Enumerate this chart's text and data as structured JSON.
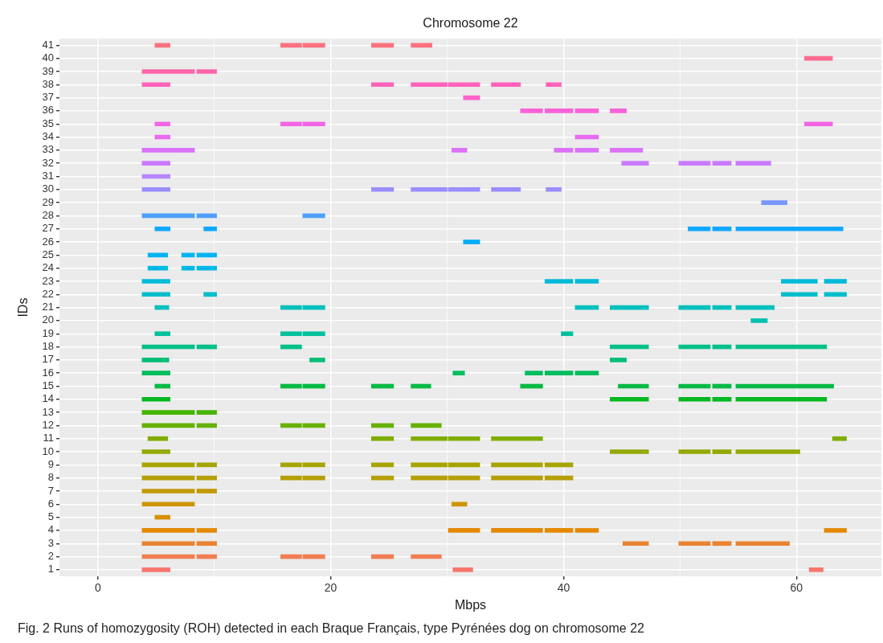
{
  "chart_data": {
    "type": "bar",
    "orientation": "horizontal",
    "title": "Chromosome 22",
    "xlabel": "Mbps",
    "ylabel": "IDs",
    "categories": [
      "41",
      "40",
      "39",
      "38",
      "37",
      "36",
      "35",
      "34",
      "33",
      "32",
      "31",
      "30",
      "29",
      "28",
      "27",
      "26",
      "25",
      "24",
      "23",
      "22",
      "21",
      "20",
      "19",
      "18",
      "17",
      "16",
      "15",
      "14",
      "13",
      "12",
      "11",
      "10",
      "9",
      "8",
      "7",
      "6",
      "5",
      "4",
      "3",
      "2",
      "1"
    ],
    "series": [
      {
        "base": [
          4.9,
          60.7,
          3.8,
          3.8,
          31.4,
          36.3,
          4.9,
          4.9,
          3.8,
          3.8,
          3.8,
          3.8,
          57.0,
          3.8,
          4.9,
          31.4,
          4.3,
          4.3,
          3.8,
          3.8,
          4.9,
          56.1,
          4.9,
          3.8,
          3.8,
          3.8,
          4.9,
          3.8,
          3.8,
          3.8,
          4.3,
          3.8,
          3.8,
          3.8,
          3.8,
          3.8,
          4.9,
          3.8,
          3.8,
          3.8,
          3.8
        ],
        "values": [
          1.3,
          2.4,
          4.5,
          2.4,
          1.4,
          1.9,
          1.3,
          1.3,
          4.5,
          2.4,
          2.4,
          2.4,
          2.2,
          4.5,
          1.3,
          1.4,
          1.7,
          1.7,
          2.4,
          2.4,
          1.2,
          1.4,
          1.3,
          4.5,
          2.3,
          2.4,
          1.3,
          2.4,
          4.5,
          4.5,
          1.7,
          2.4,
          4.5,
          4.5,
          4.5,
          4.5,
          1.3,
          4.5,
          4.5,
          4.5,
          2.4
        ],
        "colors": [
          "#fc717f",
          "#ff6c90",
          "#ff65aa",
          "#ff62ba",
          "#fe61ca",
          "#fa62d9",
          "#f365e5",
          "#e86af2",
          "#dc71fa",
          "#ca7afe",
          "#b685ff",
          "#9a8eff",
          "#7a96ff",
          "#4f9fff",
          "#0fa7ff",
          "#00adfa",
          "#00b3f1",
          "#00b8e5",
          "#00bbd8",
          "#00becb",
          "#00c0bc",
          "#00c1ae",
          "#00c19c",
          "#00c089",
          "#00bf75",
          "#00bd5e",
          "#00ba43",
          "#00b820",
          "#46b500",
          "#66b100",
          "#80ad00",
          "#94a900",
          "#a6a400",
          "#b59f00",
          "#c29a00",
          "#ce9500",
          "#d89000",
          "#e38900",
          "#ea8331",
          "#f17d51",
          "#f8766d"
        ]
      },
      {
        "base": [
          15.7,
          null,
          8.5,
          23.5,
          null,
          38.4,
          15.7,
          41.0,
          30.4,
          45.0,
          null,
          23.5,
          null,
          8.5,
          9.1,
          null,
          7.2,
          7.2,
          38.4,
          9.1,
          15.7,
          null,
          15.7,
          8.5,
          18.2,
          30.5,
          15.7,
          44.0,
          8.5,
          8.5,
          23.5,
          44.0,
          8.5,
          8.5,
          8.5,
          30.4,
          null,
          8.5,
          8.5,
          8.5,
          30.5
        ],
        "values": [
          1.8,
          null,
          1.7,
          1.9,
          null,
          2.4,
          1.8,
          2.0,
          1.3,
          2.3,
          null,
          1.9,
          null,
          1.7,
          1.1,
          null,
          1.1,
          1.1,
          2.4,
          1.1,
          1.8,
          null,
          1.8,
          1.7,
          1.3,
          1.0,
          1.8,
          3.3,
          1.7,
          1.7,
          1.9,
          3.3,
          1.7,
          1.7,
          1.7,
          1.3,
          null,
          1.7,
          1.7,
          1.7,
          1.7
        ],
        "colors": [
          "#fc717f",
          "#ff6c90",
          "#ff65aa",
          "#ff62ba",
          "#fe61ca",
          "#fa62d9",
          "#f365e5",
          "#e86af2",
          "#dc71fa",
          "#ca7afe",
          "#b685ff",
          "#9a8eff",
          "#7a96ff",
          "#4f9fff",
          "#0fa7ff",
          "#00adfa",
          "#00b3f1",
          "#00b8e5",
          "#00bbd8",
          "#00becb",
          "#00c0bc",
          "#00c1ae",
          "#00c19c",
          "#00c089",
          "#00bf75",
          "#00bd5e",
          "#00ba43",
          "#00b820",
          "#46b500",
          "#66b100",
          "#80ad00",
          "#94a900",
          "#a6a400",
          "#b59f00",
          "#c29a00",
          "#ce9500",
          "#d89000",
          "#e38900",
          "#ea8331",
          "#f17d51",
          "#f8766d"
        ]
      },
      {
        "base": [
          17.6,
          null,
          null,
          26.9,
          null,
          41.0,
          17.6,
          null,
          39.2,
          49.9,
          null,
          26.9,
          null,
          17.6,
          50.7,
          null,
          8.5,
          8.5,
          41.0,
          58.7,
          17.6,
          null,
          17.6,
          15.7,
          44.0,
          36.7,
          17.6,
          49.9,
          null,
          15.7,
          26.9,
          49.9,
          15.7,
          15.7,
          null,
          null,
          null,
          30.1,
          45.1,
          15.7,
          61.1
        ],
        "values": [
          1.9,
          null,
          null,
          3.1,
          null,
          2.0,
          1.9,
          null,
          1.6,
          2.7,
          null,
          3.1,
          null,
          1.9,
          1.9,
          null,
          1.7,
          1.7,
          2.0,
          3.1,
          1.9,
          null,
          1.9,
          1.8,
          1.4,
          1.5,
          1.9,
          2.7,
          null,
          1.8,
          3.1,
          2.7,
          1.8,
          1.8,
          null,
          null,
          null,
          2.7,
          2.2,
          1.8,
          1.2
        ],
        "colors": [
          "#fc717f",
          "#ff6c90",
          "#ff65aa",
          "#ff62ba",
          "#fe61ca",
          "#fa62d9",
          "#f365e5",
          "#e86af2",
          "#dc71fa",
          "#ca7afe",
          "#b685ff",
          "#9a8eff",
          "#7a96ff",
          "#4f9fff",
          "#0fa7ff",
          "#00adfa",
          "#00b3f1",
          "#00b8e5",
          "#00bbd8",
          "#00becb",
          "#00c0bc",
          "#00c1ae",
          "#00c19c",
          "#00c089",
          "#00bf75",
          "#00bd5e",
          "#00ba43",
          "#00b820",
          "#46b500",
          "#66b100",
          "#80ad00",
          "#94a900",
          "#a6a400",
          "#b59f00",
          "#c29a00",
          "#ce9500",
          "#d89000",
          "#e38900",
          "#ea8331",
          "#f17d51",
          "#f8766d"
        ]
      },
      {
        "base": [
          23.5,
          null,
          null,
          30.1,
          null,
          44.0,
          60.7,
          null,
          41.0,
          52.8,
          null,
          30.1,
          null,
          null,
          52.8,
          null,
          null,
          null,
          58.7,
          62.4,
          41.0,
          null,
          39.8,
          44.0,
          null,
          38.4,
          23.5,
          52.8,
          null,
          17.6,
          30.1,
          52.8,
          17.6,
          17.6,
          null,
          null,
          null,
          33.8,
          49.9,
          17.6,
          null
        ],
        "values": [
          1.9,
          null,
          null,
          2.7,
          null,
          1.4,
          2.4,
          null,
          2.0,
          1.6,
          null,
          2.7,
          null,
          null,
          1.6,
          null,
          null,
          null,
          3.1,
          1.9,
          2.0,
          null,
          1.0,
          3.3,
          null,
          2.4,
          1.9,
          1.6,
          null,
          1.9,
          2.7,
          1.6,
          1.9,
          1.9,
          null,
          null,
          null,
          4.4,
          2.7,
          1.9,
          null
        ],
        "colors": [
          "#fc717f",
          "#ff6c90",
          "#ff65aa",
          "#ff62ba",
          "#fe61ca",
          "#fa62d9",
          "#f365e5",
          "#e86af2",
          "#dc71fa",
          "#ca7afe",
          "#b685ff",
          "#9a8eff",
          "#7a96ff",
          "#4f9fff",
          "#0fa7ff",
          "#00adfa",
          "#00b3f1",
          "#00b8e5",
          "#00bbd8",
          "#00becb",
          "#00c0bc",
          "#00c1ae",
          "#00c19c",
          "#00c089",
          "#00bf75",
          "#00bd5e",
          "#00ba43",
          "#00b820",
          "#46b500",
          "#66b100",
          "#80ad00",
          "#94a900",
          "#a6a400",
          "#b59f00",
          "#c29a00",
          "#ce9500",
          "#d89000",
          "#e38900",
          "#ea8331",
          "#f17d51",
          "#f8766d"
        ]
      },
      {
        "base": [
          26.9,
          null,
          null,
          33.8,
          null,
          null,
          null,
          null,
          44.0,
          54.8,
          null,
          33.8,
          null,
          null,
          54.8,
          null,
          null,
          null,
          62.4,
          null,
          44.0,
          null,
          null,
          49.9,
          null,
          41.0,
          26.9,
          54.8,
          null,
          23.5,
          33.8,
          54.8,
          23.5,
          23.5,
          null,
          null,
          null,
          38.4,
          52.8,
          23.5,
          null
        ],
        "values": [
          1.8,
          null,
          null,
          2.5,
          null,
          null,
          null,
          null,
          2.8,
          3.0,
          null,
          2.5,
          null,
          null,
          9.2,
          null,
          null,
          null,
          1.9,
          null,
          3.3,
          null,
          null,
          2.7,
          null,
          2.0,
          1.7,
          7.8,
          null,
          1.9,
          4.4,
          5.5,
          1.9,
          1.9,
          null,
          null,
          null,
          2.4,
          1.6,
          1.9,
          null
        ],
        "colors": [
          "#fc717f",
          "#ff6c90",
          "#ff65aa",
          "#ff62ba",
          "#fe61ca",
          "#fa62d9",
          "#f365e5",
          "#e86af2",
          "#dc71fa",
          "#ca7afe",
          "#b685ff",
          "#9a8eff",
          "#7a96ff",
          "#4f9fff",
          "#0fa7ff",
          "#00adfa",
          "#00b3f1",
          "#00b8e5",
          "#00bbd8",
          "#00becb",
          "#00c0bc",
          "#00c1ae",
          "#00c19c",
          "#00c089",
          "#00bf75",
          "#00bd5e",
          "#00ba43",
          "#00b820",
          "#46b500",
          "#66b100",
          "#80ad00",
          "#94a900",
          "#a6a400",
          "#b59f00",
          "#c29a00",
          "#ce9500",
          "#d89000",
          "#e38900",
          "#ea8331",
          "#f17d51",
          "#f8766d"
        ]
      },
      {
        "base": [
          null,
          null,
          null,
          38.5,
          null,
          null,
          null,
          null,
          null,
          null,
          null,
          38.5,
          null,
          null,
          null,
          null,
          null,
          null,
          null,
          null,
          49.9,
          null,
          null,
          52.8,
          null,
          null,
          36.3,
          null,
          null,
          26.9,
          63.1,
          null,
          26.9,
          26.9,
          null,
          null,
          null,
          41.0,
          54.8,
          26.9,
          null
        ],
        "values": [
          null,
          null,
          null,
          1.3,
          null,
          null,
          null,
          null,
          null,
          null,
          null,
          1.3,
          null,
          null,
          null,
          null,
          null,
          null,
          null,
          null,
          2.7,
          null,
          null,
          1.6,
          null,
          null,
          1.9,
          null,
          null,
          2.6,
          1.2,
          null,
          3.1,
          3.1,
          null,
          null,
          null,
          2.0,
          4.6,
          2.6,
          null
        ],
        "colors": [
          "#fc717f",
          "#ff6c90",
          "#ff65aa",
          "#ff62ba",
          "#fe61ca",
          "#fa62d9",
          "#f365e5",
          "#e86af2",
          "#dc71fa",
          "#ca7afe",
          "#b685ff",
          "#9a8eff",
          "#7a96ff",
          "#4f9fff",
          "#0fa7ff",
          "#00adfa",
          "#00b3f1",
          "#00b8e5",
          "#00bbd8",
          "#00becb",
          "#00c0bc",
          "#00c1ae",
          "#00c19c",
          "#00c089",
          "#00bf75",
          "#00bd5e",
          "#00ba43",
          "#00b820",
          "#46b500",
          "#66b100",
          "#80ad00",
          "#94a900",
          "#a6a400",
          "#b59f00",
          "#c29a00",
          "#ce9500",
          "#d89000",
          "#e38900",
          "#ea8331",
          "#f17d51",
          "#f8766d"
        ]
      },
      {
        "base": [
          null,
          null,
          null,
          null,
          null,
          null,
          null,
          null,
          null,
          null,
          null,
          null,
          null,
          null,
          null,
          null,
          null,
          null,
          null,
          null,
          52.8,
          null,
          null,
          54.8,
          null,
          null,
          44.7,
          null,
          null,
          null,
          null,
          null,
          30.1,
          30.1,
          null,
          null,
          null,
          62.4,
          null,
          null,
          null
        ],
        "values": [
          null,
          null,
          null,
          null,
          null,
          null,
          null,
          null,
          null,
          null,
          null,
          null,
          null,
          null,
          null,
          null,
          null,
          null,
          null,
          null,
          1.6,
          null,
          null,
          7.8,
          null,
          null,
          2.6,
          null,
          null,
          null,
          null,
          null,
          2.7,
          2.7,
          null,
          null,
          null,
          1.9,
          null,
          null,
          null
        ],
        "colors": [
          "#fc717f",
          "#ff6c90",
          "#ff65aa",
          "#ff62ba",
          "#fe61ca",
          "#fa62d9",
          "#f365e5",
          "#e86af2",
          "#dc71fa",
          "#ca7afe",
          "#b685ff",
          "#9a8eff",
          "#7a96ff",
          "#4f9fff",
          "#0fa7ff",
          "#00adfa",
          "#00b3f1",
          "#00b8e5",
          "#00bbd8",
          "#00becb",
          "#00c0bc",
          "#00c1ae",
          "#00c19c",
          "#00c089",
          "#00bf75",
          "#00bd5e",
          "#00ba43",
          "#00b820",
          "#46b500",
          "#66b100",
          "#80ad00",
          "#94a900",
          "#a6a400",
          "#b59f00",
          "#c29a00",
          "#ce9500",
          "#d89000",
          "#e38900",
          "#ea8331",
          "#f17d51",
          "#f8766d"
        ]
      },
      {
        "base": [
          null,
          null,
          null,
          null,
          null,
          null,
          null,
          null,
          null,
          null,
          null,
          null,
          null,
          null,
          null,
          null,
          null,
          null,
          null,
          null,
          54.8,
          null,
          null,
          null,
          null,
          null,
          49.9,
          null,
          null,
          null,
          null,
          null,
          33.8,
          33.8,
          null,
          null,
          null,
          null,
          null,
          null,
          null
        ],
        "values": [
          null,
          null,
          null,
          null,
          null,
          null,
          null,
          null,
          null,
          null,
          null,
          null,
          null,
          null,
          null,
          null,
          null,
          null,
          null,
          null,
          3.3,
          null,
          null,
          null,
          null,
          null,
          2.7,
          null,
          null,
          null,
          null,
          null,
          4.4,
          4.4,
          null,
          null,
          null,
          null,
          null,
          null,
          null
        ],
        "colors": [
          "#fc717f",
          "#ff6c90",
          "#ff65aa",
          "#ff62ba",
          "#fe61ca",
          "#fa62d9",
          "#f365e5",
          "#e86af2",
          "#dc71fa",
          "#ca7afe",
          "#b685ff",
          "#9a8eff",
          "#7a96ff",
          "#4f9fff",
          "#0fa7ff",
          "#00adfa",
          "#00b3f1",
          "#00b8e5",
          "#00bbd8",
          "#00becb",
          "#00c0bc",
          "#00c1ae",
          "#00c19c",
          "#00c089",
          "#00bf75",
          "#00bd5e",
          "#00ba43",
          "#00b820",
          "#46b500",
          "#66b100",
          "#80ad00",
          "#94a900",
          "#a6a400",
          "#b59f00",
          "#c29a00",
          "#ce9500",
          "#d89000",
          "#e38900",
          "#ea8331",
          "#f17d51",
          "#f8766d"
        ]
      },
      {
        "base": [
          null,
          null,
          null,
          null,
          null,
          null,
          null,
          null,
          null,
          null,
          null,
          null,
          null,
          null,
          null,
          null,
          null,
          null,
          null,
          null,
          null,
          null,
          null,
          null,
          null,
          null,
          52.8,
          null,
          null,
          null,
          null,
          null,
          38.4,
          38.4,
          null,
          null,
          null,
          null,
          null,
          null,
          null
        ],
        "values": [
          null,
          null,
          null,
          null,
          null,
          null,
          null,
          null,
          null,
          null,
          null,
          null,
          null,
          null,
          null,
          null,
          null,
          null,
          null,
          null,
          null,
          null,
          null,
          null,
          null,
          null,
          1.6,
          null,
          null,
          null,
          null,
          null,
          2.4,
          2.4,
          null,
          null,
          null,
          null,
          null,
          null,
          null
        ],
        "colors": [
          "#fc717f",
          "#ff6c90",
          "#ff65aa",
          "#ff62ba",
          "#fe61ca",
          "#fa62d9",
          "#f365e5",
          "#e86af2",
          "#dc71fa",
          "#ca7afe",
          "#b685ff",
          "#9a8eff",
          "#7a96ff",
          "#4f9fff",
          "#0fa7ff",
          "#00adfa",
          "#00b3f1",
          "#00b8e5",
          "#00bbd8",
          "#00becb",
          "#00c0bc",
          "#00c1ae",
          "#00c19c",
          "#00c089",
          "#00bf75",
          "#00bd5e",
          "#00ba43",
          "#00b820",
          "#46b500",
          "#66b100",
          "#80ad00",
          "#94a900",
          "#a6a400",
          "#b59f00",
          "#c29a00",
          "#ce9500",
          "#d89000",
          "#e38900",
          "#ea8331",
          "#f17d51",
          "#f8766d"
        ]
      },
      {
        "base": [
          null,
          null,
          null,
          null,
          null,
          null,
          null,
          null,
          null,
          null,
          null,
          null,
          null,
          null,
          null,
          null,
          null,
          null,
          null,
          null,
          null,
          null,
          null,
          null,
          null,
          null,
          54.8,
          null,
          null,
          null,
          null,
          null,
          null,
          null,
          null,
          null,
          null,
          null,
          null,
          null,
          null
        ],
        "values": [
          null,
          null,
          null,
          null,
          null,
          null,
          null,
          null,
          null,
          null,
          null,
          null,
          null,
          null,
          null,
          null,
          null,
          null,
          null,
          null,
          null,
          null,
          null,
          null,
          null,
          null,
          8.4,
          null,
          null,
          null,
          null,
          null,
          null,
          null,
          null,
          null,
          null,
          null,
          null,
          null,
          null
        ],
        "colors": [
          "#fc717f",
          "#ff6c90",
          "#ff65aa",
          "#ff62ba",
          "#fe61ca",
          "#fa62d9",
          "#f365e5",
          "#e86af2",
          "#dc71fa",
          "#ca7afe",
          "#b685ff",
          "#9a8eff",
          "#7a96ff",
          "#4f9fff",
          "#0fa7ff",
          "#00adfa",
          "#00b3f1",
          "#00b8e5",
          "#00bbd8",
          "#00becb",
          "#00c0bc",
          "#00c1ae",
          "#00c19c",
          "#00c089",
          "#00bf75",
          "#00bd5e",
          "#00ba43",
          "#00b820",
          "#46b500",
          "#66b100",
          "#80ad00",
          "#94a900",
          "#a6a400",
          "#b59f00",
          "#c29a00",
          "#ce9500",
          "#d89000",
          "#e38900",
          "#ea8331",
          "#f17d51",
          "#f8766d"
        ]
      }
    ],
    "xlim": [
      -3.3,
      67.3
    ],
    "xticks": [
      0,
      {
        "value": 10,
        "label": null
      },
      20,
      {
        "value": 30,
        "label": null
      },
      40,
      {
        "value": 50,
        "label": null
      },
      60
    ],
    "grid": true,
    "annotations": [
      "Fig. 2 Runs of homozygosity (ROH) detected in each Braque Français, type Pyrénées dog on chromosome 22"
    ]
  }
}
